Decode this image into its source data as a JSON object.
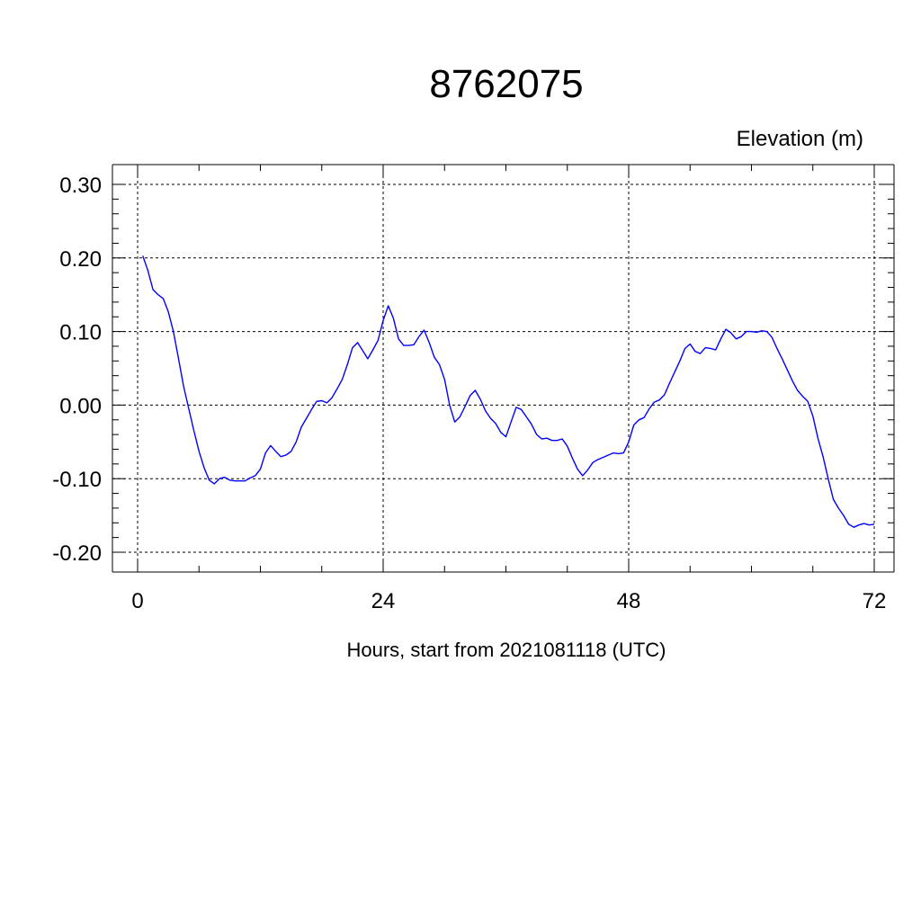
{
  "chart_data": {
    "type": "line",
    "title": "8762075",
    "ylabel": "Elevation (m)",
    "xlabel": "Hours, start from 2021081118 (UTC)",
    "xlim": [
      0,
      72
    ],
    "ylim": [
      -0.2,
      0.3
    ],
    "xticks": [
      0,
      24,
      48,
      72
    ],
    "xtick_labels": [
      "0",
      "24",
      "48",
      "72"
    ],
    "yticks": [
      -0.2,
      -0.1,
      0.0,
      0.1,
      0.2,
      0.3
    ],
    "ytick_labels": [
      "-0.20",
      "-0.10",
      "0.00",
      "0.10",
      "0.20",
      "0.30"
    ],
    "grid": true,
    "line_color": "#0000ff",
    "series": [
      {
        "x": [
          0.5,
          1,
          1.5,
          2,
          2.5,
          3,
          3.5,
          4,
          4.5,
          5,
          5.5,
          6,
          6.5,
          7,
          7.5,
          8,
          8.5,
          9,
          9.5,
          10,
          10.5,
          11,
          11.5,
          12,
          12.5,
          13,
          13.5,
          14,
          14.5,
          15,
          15.5,
          16,
          16.5,
          17,
          17.5,
          18,
          18.5,
          19,
          19.5,
          20,
          20.5,
          21,
          21.5,
          22,
          22.5,
          23,
          23.5,
          24,
          24.5,
          25,
          25.5,
          26,
          26.5,
          27,
          27.5,
          28,
          28.5,
          29,
          29.5,
          30,
          30.5,
          31,
          31.5,
          32,
          32.5,
          33,
          33.5,
          34,
          34.5,
          35,
          35.5,
          36,
          36.5,
          37,
          37.5,
          38,
          38.5,
          39,
          39.5,
          40,
          40.5,
          41,
          41.5,
          42,
          42.5,
          43,
          43.5,
          44,
          44.5,
          45,
          45.5,
          46,
          46.5,
          47,
          47.5,
          48,
          48.5,
          49,
          49.5,
          50,
          50.5,
          51,
          51.5,
          52,
          52.5,
          53,
          53.5,
          54,
          54.5,
          55,
          55.5,
          56,
          56.5,
          57,
          57.5,
          58,
          58.5,
          59,
          59.5,
          60,
          60.5,
          61,
          61.5,
          62,
          62.5,
          63,
          63.5,
          64,
          64.5,
          65,
          65.5,
          66,
          66.5,
          67,
          67.5,
          68,
          68.5,
          69,
          69.5,
          70,
          70.5,
          71,
          71.5,
          72
        ],
        "y": [
          0.203,
          0.183,
          0.157,
          0.15,
          0.145,
          0.127,
          0.1,
          0.063,
          0.025,
          -0.005,
          -0.035,
          -0.063,
          -0.085,
          -0.102,
          -0.107,
          -0.1,
          -0.098,
          -0.102,
          -0.103,
          -0.103,
          -0.103,
          -0.099,
          -0.096,
          -0.087,
          -0.065,
          -0.055,
          -0.063,
          -0.07,
          -0.068,
          -0.063,
          -0.05,
          -0.03,
          -0.018,
          -0.006,
          0.005,
          0.006,
          0.003,
          0.01,
          0.022,
          0.035,
          0.055,
          0.078,
          0.085,
          0.074,
          0.063,
          0.075,
          0.088,
          0.115,
          0.135,
          0.118,
          0.09,
          0.081,
          0.081,
          0.082,
          0.093,
          0.102,
          0.085,
          0.065,
          0.055,
          0.035,
          0.0,
          -0.023,
          -0.016,
          -0.002,
          0.013,
          0.02,
          0.008,
          -0.008,
          -0.018,
          -0.025,
          -0.037,
          -0.043,
          -0.023,
          -0.003,
          -0.006,
          -0.016,
          -0.026,
          -0.04,
          -0.046,
          -0.045,
          -0.048,
          -0.048,
          -0.046,
          -0.056,
          -0.072,
          -0.087,
          -0.096,
          -0.088,
          -0.078,
          -0.074,
          -0.071,
          -0.068,
          -0.065,
          -0.066,
          -0.065,
          -0.05,
          -0.027,
          -0.02,
          -0.017,
          -0.005,
          0.004,
          0.007,
          0.014,
          0.03,
          0.045,
          0.06,
          0.077,
          0.083,
          0.073,
          0.07,
          0.078,
          0.077,
          0.075,
          0.09,
          0.103,
          0.098,
          0.09,
          0.093,
          0.1,
          0.1,
          0.099,
          0.101,
          0.1,
          0.092,
          0.077,
          0.063,
          0.048,
          0.033,
          0.02,
          0.012,
          0.005,
          -0.015,
          -0.045,
          -0.07,
          -0.1,
          -0.128,
          -0.14,
          -0.15,
          -0.162,
          -0.166,
          -0.163,
          -0.161,
          -0.163,
          -0.162
        ]
      }
    ]
  }
}
